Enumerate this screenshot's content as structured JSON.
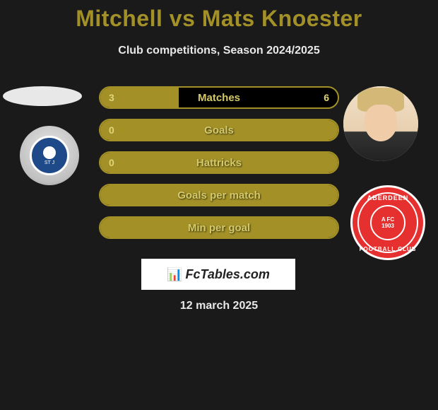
{
  "title": "Mitchell vs Mats Knoester",
  "subtitle": "Club competitions, Season 2024/2025",
  "date": "12 march 2025",
  "logo_text": "FcTables.com",
  "colors": {
    "background": "#1a1a1a",
    "accent": "#a39128",
    "text_light": "#e8e8e8",
    "bar_fill": "#a39128",
    "bar_border": "#a39128"
  },
  "stats": [
    {
      "label": "Matches",
      "left_value": "3",
      "right_value": "6",
      "left_pct": 33,
      "show_right": true
    },
    {
      "label": "Goals",
      "left_value": "0",
      "right_value": "",
      "left_pct": 0,
      "show_right": false,
      "full": true
    },
    {
      "label": "Hattricks",
      "left_value": "0",
      "right_value": "",
      "left_pct": 0,
      "show_right": false,
      "full": true
    },
    {
      "label": "Goals per match",
      "left_value": "",
      "right_value": "",
      "left_pct": 0,
      "show_right": false,
      "full": true
    },
    {
      "label": "Min per goal",
      "left_value": "",
      "right_value": "",
      "left_pct": 0,
      "show_right": false,
      "full": true
    }
  ],
  "left_player": {
    "name": "Mitchell",
    "club_initials": "ST J",
    "club_color": "#1e4a8a"
  },
  "right_player": {
    "name": "Mats Knoester",
    "club_name_top": "ABERDEEN",
    "club_name_bot": "FOOTBALL CLUB",
    "club_letters": "A FC",
    "club_year": "1903",
    "club_color": "#e63030"
  }
}
